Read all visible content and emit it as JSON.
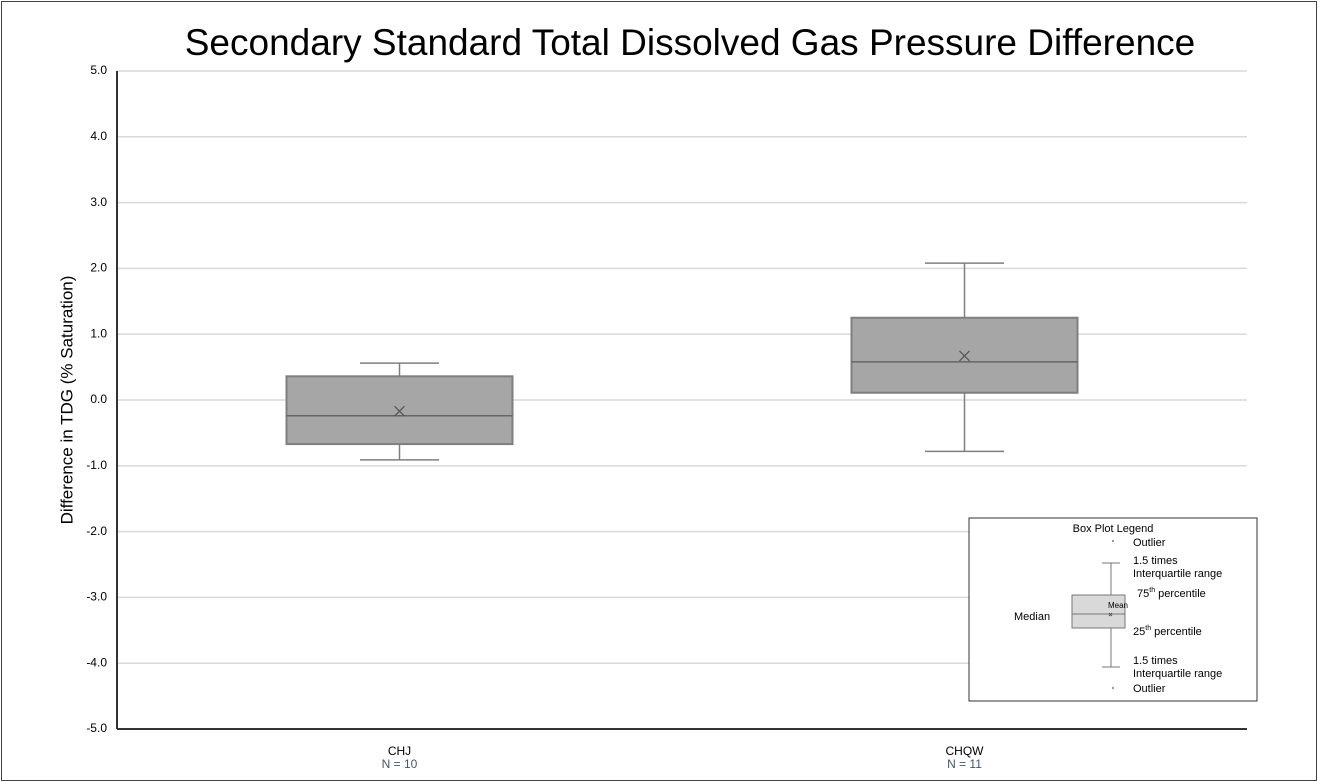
{
  "chart_data": {
    "type": "box",
    "title": "Secondary Standard Total Dissolved Gas Pressure Difference",
    "y_label": "Difference in TDG (% Saturation)",
    "categories": [
      "CHJ",
      "CHQW"
    ],
    "n_labels": [
      "N = 10",
      "N = 11"
    ],
    "boxes": [
      {
        "whisker_low": -0.91,
        "q1": -0.67,
        "median": -0.24,
        "q3": 0.36,
        "whisker_high": 0.56,
        "mean": -0.17
      },
      {
        "whisker_low": -0.78,
        "q1": 0.11,
        "median": 0.58,
        "q3": 1.25,
        "whisker_high": 2.08,
        "mean": 0.67
      }
    ],
    "color": "#a6a6a6",
    "edge_color": "#7f7f7f",
    "ylim": [
      -5,
      5
    ],
    "yticks": [
      {
        "value": -5,
        "label": "-5.0"
      },
      {
        "value": -4,
        "label": "-4.0"
      },
      {
        "value": -3,
        "label": "-3.0"
      },
      {
        "value": -2,
        "label": "-2.0"
      },
      {
        "value": -1,
        "label": "-1.0"
      },
      {
        "value": 0,
        "label": "0.0"
      },
      {
        "value": 1,
        "label": "1.0"
      },
      {
        "value": 2,
        "label": "2.0"
      },
      {
        "value": 3,
        "label": "3.0"
      },
      {
        "value": 4,
        "label": "4.0"
      },
      {
        "value": 5,
        "label": "5.0"
      }
    ],
    "grid": true,
    "legend_inset": {
      "title": "Box Plot Legend",
      "outlier": "Outlier",
      "whisker_label": [
        "1.5 times",
        "Interquartile range"
      ],
      "q3_label": {
        "ordinal": "75",
        "suffix": "th",
        "text": "percentile"
      },
      "mean": "Mean",
      "median": "Median",
      "q1_label": {
        "ordinal": "25",
        "suffix": "th",
        "text": "percentile"
      }
    }
  }
}
